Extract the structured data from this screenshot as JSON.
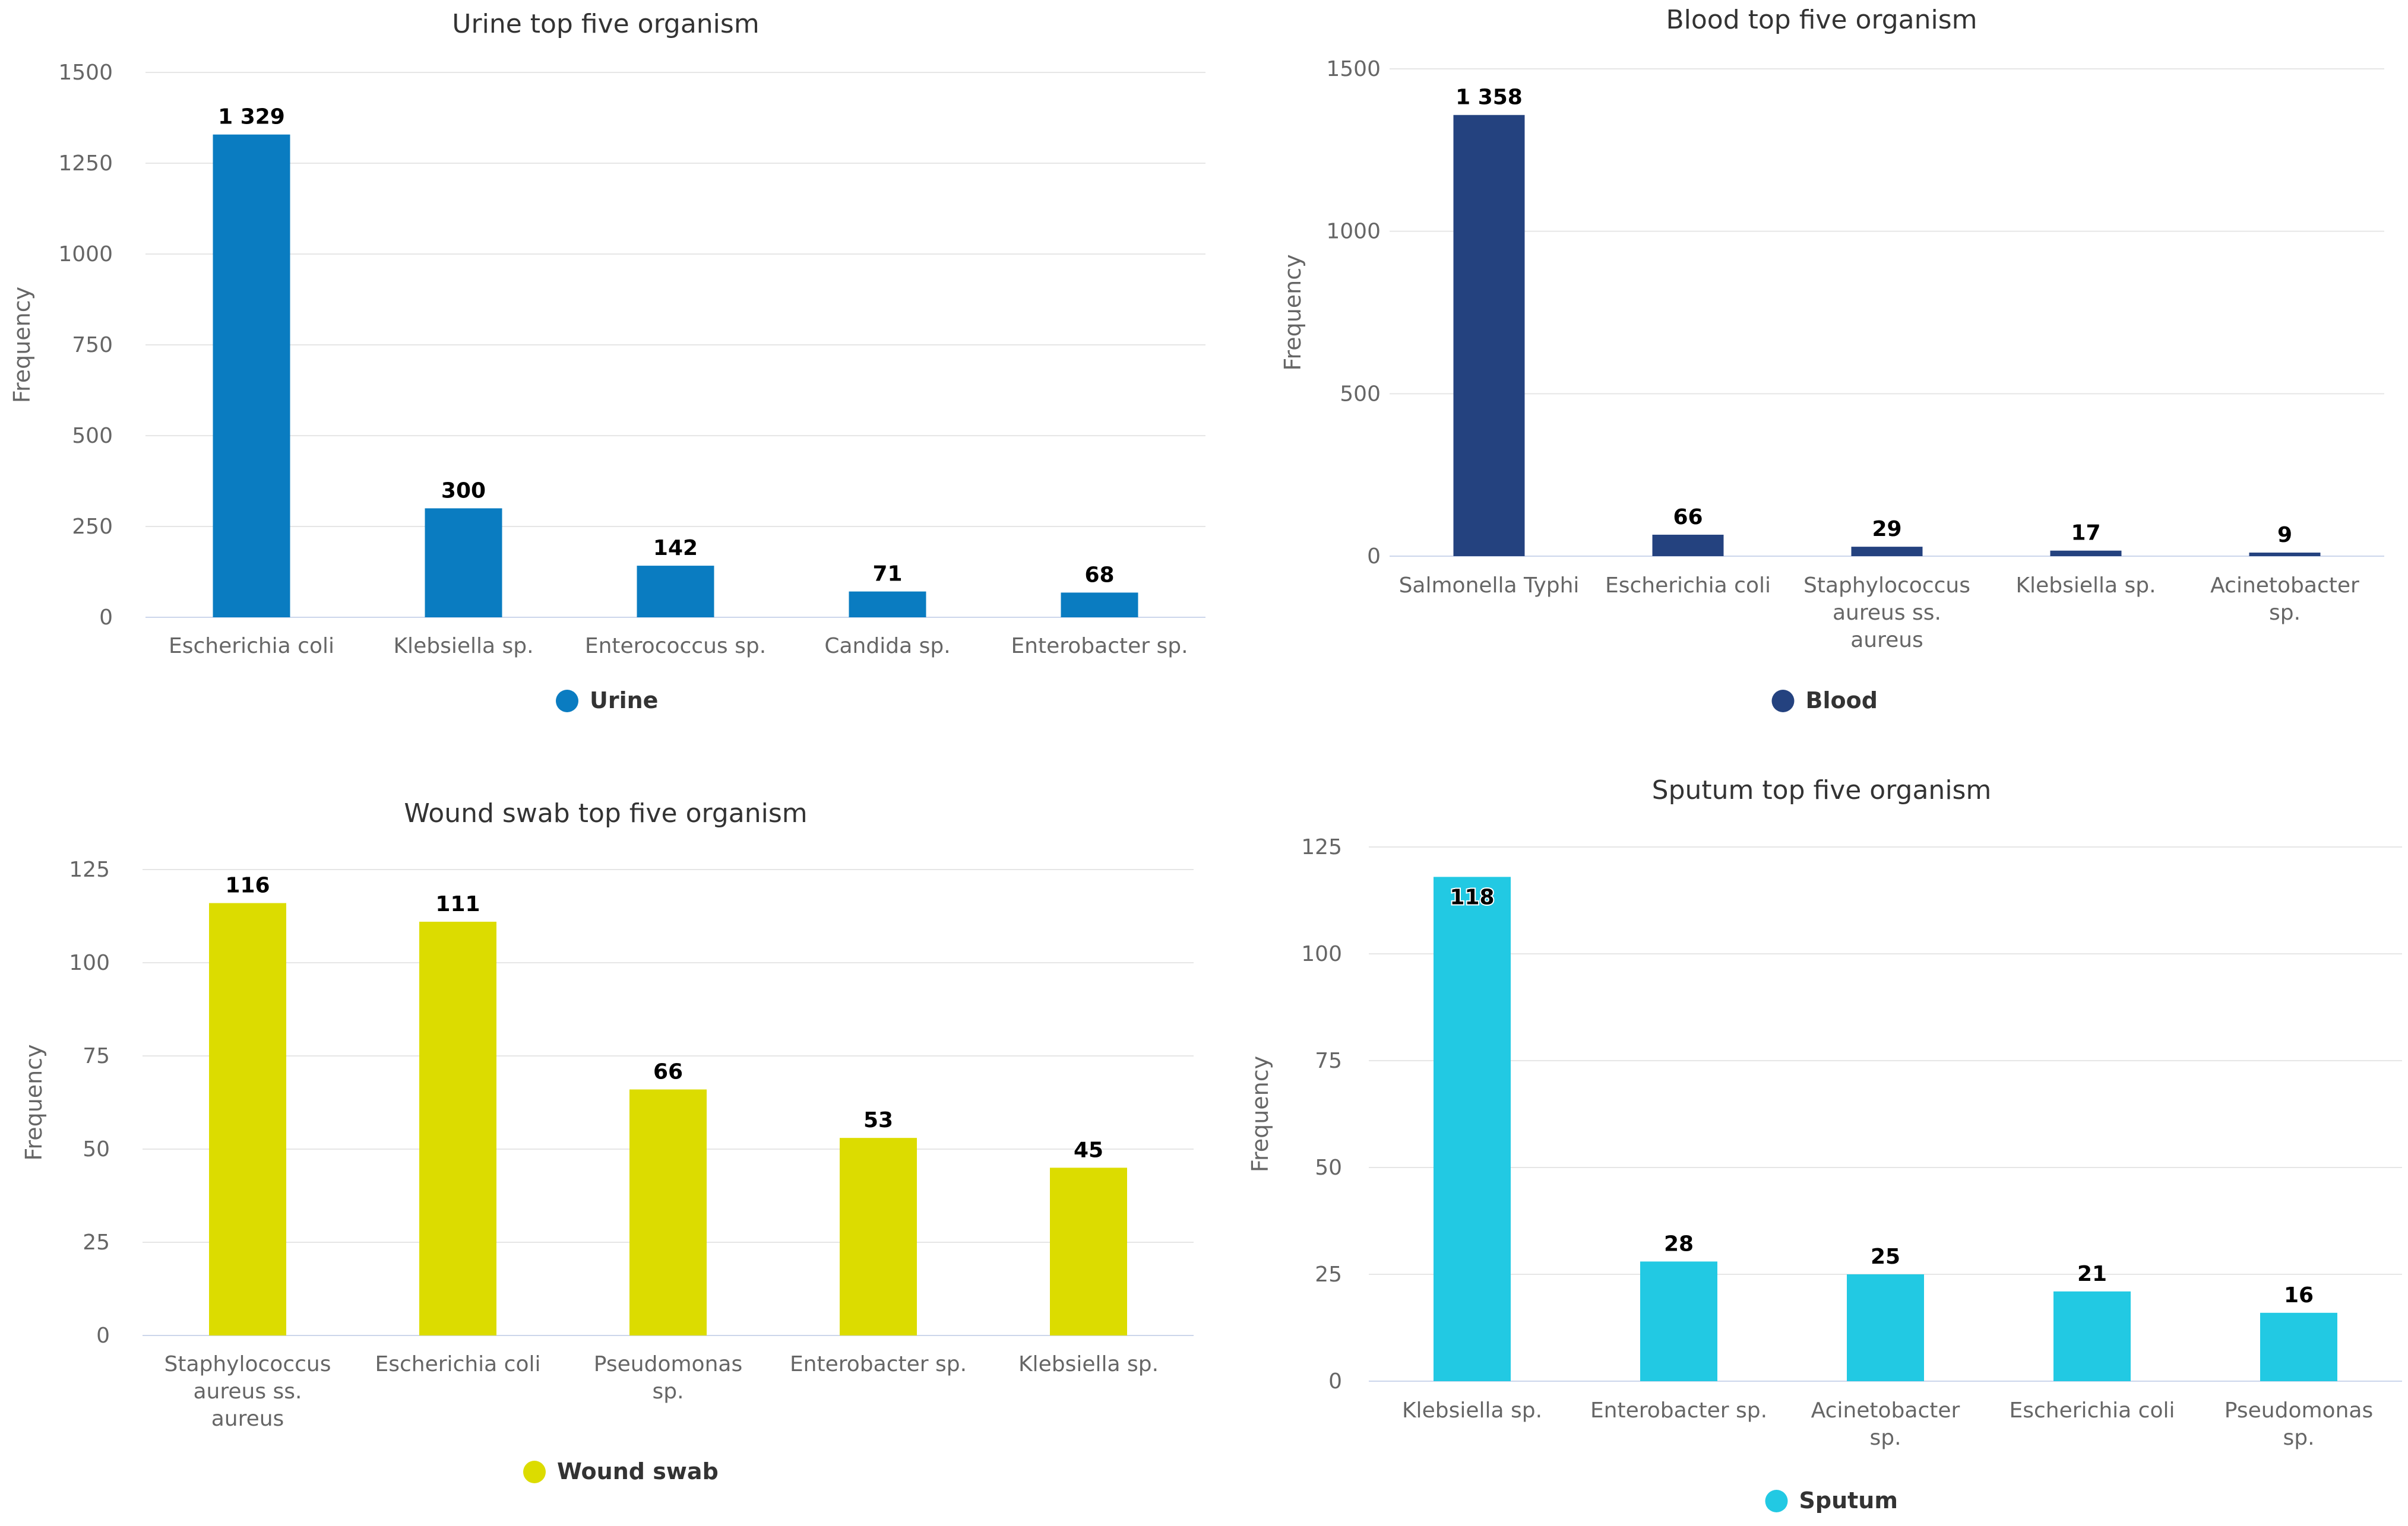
{
  "chart_data": [
    {
      "type": "bar",
      "title": "Urine top five organism",
      "ylabel": "Frequency",
      "xlabel": "",
      "ylim": [
        0,
        1500
      ],
      "yticks": [
        "0",
        "250",
        "500",
        "750",
        "1000",
        "1250",
        "1500"
      ],
      "ytick_values": [
        0,
        250,
        500,
        750,
        1000,
        1250,
        1500
      ],
      "categories": [
        [
          "Escherichia coli"
        ],
        [
          "Klebsiella sp."
        ],
        [
          "Enterococcus sp."
        ],
        [
          "Candida sp."
        ],
        [
          "Enterobacter sp."
        ]
      ],
      "values": [
        1329,
        300,
        142,
        71,
        68
      ],
      "data_labels": [
        "1 329",
        "300",
        "142",
        "71",
        "68"
      ],
      "series_name": "Urine",
      "color": "#0a7cc1",
      "legend": "bottom-center"
    },
    {
      "type": "bar",
      "title": "Blood top five organism",
      "ylabel": "Frequency",
      "xlabel": "",
      "ylim": [
        0,
        1500
      ],
      "yticks": [
        "0",
        "500",
        "1000",
        "1500"
      ],
      "ytick_values": [
        0,
        500,
        1000,
        1500
      ],
      "categories": [
        [
          "Salmonella Typhi"
        ],
        [
          "Escherichia coli"
        ],
        [
          "Staphylococcus",
          "aureus ss.",
          "aureus"
        ],
        [
          "Klebsiella sp."
        ],
        [
          "Acinetobacter",
          "sp."
        ]
      ],
      "values": [
        1358,
        66,
        29,
        17,
        9
      ],
      "data_labels": [
        "1 358",
        "66",
        "29",
        "17",
        "9"
      ],
      "series_name": "Blood",
      "color": "#24427f",
      "legend": "bottom-center"
    },
    {
      "type": "bar",
      "title": "Wound swab top five organism",
      "ylabel": "Frequency",
      "xlabel": "",
      "ylim": [
        0,
        125
      ],
      "yticks": [
        "0",
        "25",
        "50",
        "75",
        "100",
        "125"
      ],
      "ytick_values": [
        0,
        25,
        50,
        75,
        100,
        125
      ],
      "categories": [
        [
          "Staphylococcus",
          "aureus ss.",
          "aureus"
        ],
        [
          "Escherichia coli"
        ],
        [
          "Pseudomonas",
          "sp."
        ],
        [
          "Enterobacter sp."
        ],
        [
          "Klebsiella sp."
        ]
      ],
      "values": [
        116,
        111,
        66,
        53,
        45
      ],
      "data_labels": [
        "116",
        "111",
        "66",
        "53",
        "45"
      ],
      "series_name": "Wound swab",
      "color": "#dcdc00",
      "legend": "bottom-center"
    },
    {
      "type": "bar",
      "title": "Sputum top five organism",
      "ylabel": "Frequency",
      "xlabel": "",
      "ylim": [
        0,
        125
      ],
      "yticks": [
        "0",
        "25",
        "50",
        "75",
        "100",
        "125"
      ],
      "ytick_values": [
        0,
        25,
        50,
        75,
        100,
        125
      ],
      "categories": [
        [
          "Klebsiella sp."
        ],
        [
          "Enterobacter sp."
        ],
        [
          "Acinetobacter",
          "sp."
        ],
        [
          "Escherichia coli"
        ],
        [
          "Pseudomonas",
          "sp."
        ]
      ],
      "values": [
        118,
        28,
        25,
        21,
        16
      ],
      "data_labels": [
        "118",
        "28",
        "25",
        "21",
        "16"
      ],
      "series_name": "Sputum",
      "color": "#22c9e3",
      "legend": "bottom-center"
    }
  ]
}
